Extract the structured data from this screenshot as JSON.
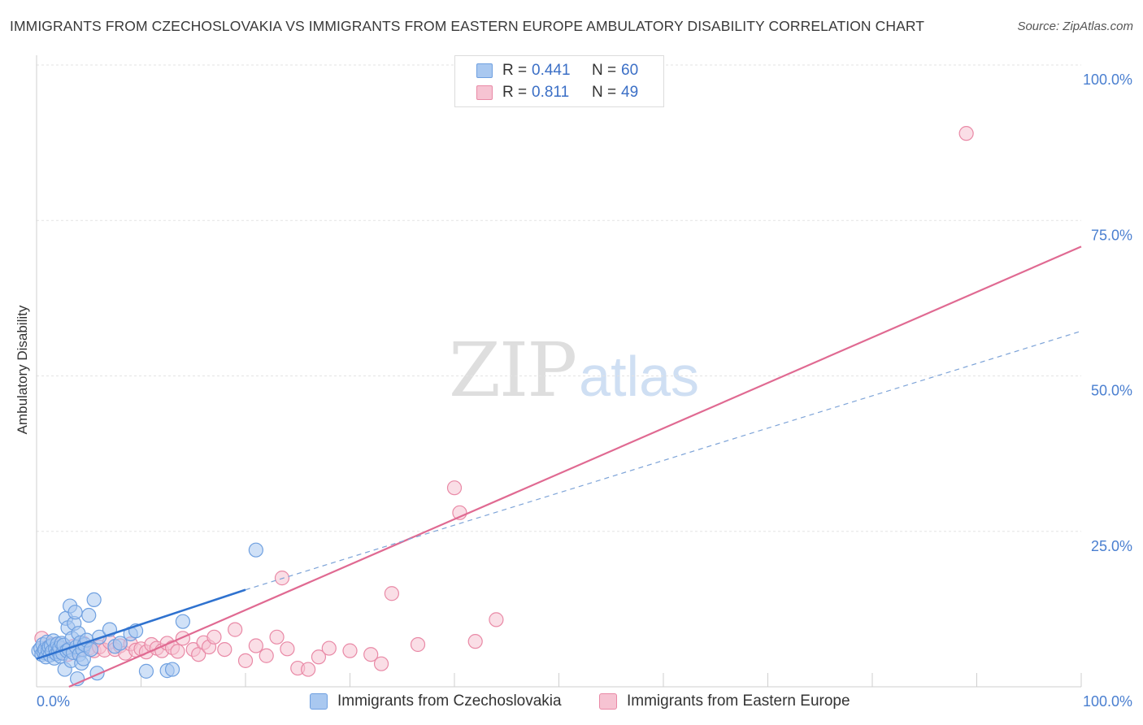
{
  "title": "IMMIGRANTS FROM CZECHOSLOVAKIA VS IMMIGRANTS FROM EASTERN EUROPE AMBULATORY DISABILITY CORRELATION CHART",
  "source": "Source: ZipAtlas.com",
  "watermark": {
    "zip": "ZIP",
    "atlas": "atlas"
  },
  "legend": {
    "rows": [
      {
        "r_label": "R =",
        "r_value": "0.441",
        "n_label": "N =",
        "n_value": "60"
      },
      {
        "r_label": "R =",
        "r_value": "0.811",
        "n_label": "N =",
        "n_value": "49"
      }
    ]
  },
  "chart_data": {
    "type": "scatter",
    "title": "IMMIGRANTS FROM CZECHOSLOVAKIA VS IMMIGRANTS FROM EASTERN EUROPE AMBULATORY DISABILITY CORRELATION CHART",
    "xlabel": "",
    "ylabel": "Ambulatory Disability",
    "xlim": [
      0,
      100
    ],
    "ylim": [
      0,
      100
    ],
    "x_tick_labels": [
      "0.0%",
      "100.0%"
    ],
    "y_tick_labels": [
      "25.0%",
      "50.0%",
      "75.0%",
      "100.0%"
    ],
    "y_ticks": [
      25,
      50,
      75,
      100
    ],
    "grid": true,
    "series": [
      {
        "name": "Immigrants from Czechoslovakia",
        "color": "#6fa0e0",
        "fill": "#a9c8f0",
        "R": 0.441,
        "N": 60,
        "trend": {
          "x0": 0,
          "y0": 4.5,
          "x1": 20,
          "y1": 15.6,
          "dashed_to": 100,
          "dashed_y": 57.2
        },
        "points": [
          [
            0.2,
            5.8
          ],
          [
            0.4,
            6.2
          ],
          [
            0.5,
            5.2
          ],
          [
            0.6,
            6.8
          ],
          [
            0.7,
            5.5
          ],
          [
            0.8,
            6.0
          ],
          [
            0.9,
            4.8
          ],
          [
            1.0,
            7.2
          ],
          [
            1.1,
            5.9
          ],
          [
            1.2,
            6.4
          ],
          [
            1.3,
            5.1
          ],
          [
            1.4,
            6.6
          ],
          [
            1.5,
            5.7
          ],
          [
            1.6,
            7.4
          ],
          [
            1.7,
            4.6
          ],
          [
            1.8,
            6.1
          ],
          [
            1.9,
            5.3
          ],
          [
            2.0,
            6.9
          ],
          [
            2.1,
            5.6
          ],
          [
            2.2,
            6.3
          ],
          [
            2.3,
            4.9
          ],
          [
            2.4,
            7.0
          ],
          [
            2.5,
            5.4
          ],
          [
            2.6,
            6.7
          ],
          [
            2.7,
            2.8
          ],
          [
            2.8,
            11.0
          ],
          [
            2.9,
            5.8
          ],
          [
            3.0,
            9.5
          ],
          [
            3.1,
            6.0
          ],
          [
            3.2,
            13.0
          ],
          [
            3.3,
            4.2
          ],
          [
            3.4,
            7.8
          ],
          [
            3.5,
            5.5
          ],
          [
            3.6,
            10.2
          ],
          [
            3.7,
            12.0
          ],
          [
            3.8,
            6.4
          ],
          [
            3.9,
            1.3
          ],
          [
            4.0,
            8.6
          ],
          [
            4.1,
            5.2
          ],
          [
            4.2,
            7.1
          ],
          [
            4.3,
            3.8
          ],
          [
            4.4,
            6.0
          ],
          [
            4.5,
            4.5
          ],
          [
            4.6,
            6.8
          ],
          [
            4.8,
            7.5
          ],
          [
            5.0,
            11.5
          ],
          [
            5.2,
            6.0
          ],
          [
            5.5,
            14.0
          ],
          [
            5.8,
            2.2
          ],
          [
            6.0,
            8.0
          ],
          [
            7.0,
            9.2
          ],
          [
            7.5,
            6.5
          ],
          [
            8.0,
            7.0
          ],
          [
            9.0,
            8.5
          ],
          [
            9.5,
            9.0
          ],
          [
            10.5,
            2.5
          ],
          [
            12.5,
            2.6
          ],
          [
            13.0,
            2.8
          ],
          [
            14.0,
            10.5
          ],
          [
            21.0,
            22.0
          ]
        ]
      },
      {
        "name": "Immigrants from Eastern Europe",
        "color": "#e989a6",
        "fill": "#f6c3d2",
        "R": 0.811,
        "N": 49,
        "trend": {
          "x0": 3.1,
          "y0": 0,
          "x1": 100,
          "y1": 70.8
        },
        "points": [
          [
            0.5,
            7.8
          ],
          [
            1.0,
            6.3
          ],
          [
            1.5,
            6.8
          ],
          [
            2.0,
            5.6
          ],
          [
            2.5,
            6.1
          ],
          [
            3.0,
            5.2
          ],
          [
            3.5,
            6.5
          ],
          [
            4.0,
            5.8
          ],
          [
            4.5,
            7.0
          ],
          [
            5.0,
            6.2
          ],
          [
            5.5,
            5.8
          ],
          [
            6.0,
            6.4
          ],
          [
            6.5,
            5.9
          ],
          [
            7.0,
            7.2
          ],
          [
            7.5,
            6.0
          ],
          [
            8.0,
            6.6
          ],
          [
            8.5,
            5.4
          ],
          [
            9.0,
            6.9
          ],
          [
            9.5,
            5.9
          ],
          [
            10.0,
            6.1
          ],
          [
            10.5,
            5.6
          ],
          [
            11.0,
            6.8
          ],
          [
            11.5,
            6.2
          ],
          [
            12.0,
            5.8
          ],
          [
            12.5,
            7.0
          ],
          [
            13.0,
            6.3
          ],
          [
            13.5,
            5.7
          ],
          [
            14.0,
            7.8
          ],
          [
            15.0,
            6.0
          ],
          [
            15.5,
            5.2
          ],
          [
            16.0,
            7.1
          ],
          [
            16.5,
            6.4
          ],
          [
            17.0,
            8.0
          ],
          [
            18.0,
            6.0
          ],
          [
            19.0,
            9.2
          ],
          [
            20.0,
            4.2
          ],
          [
            21.0,
            6.6
          ],
          [
            22.0,
            5.0
          ],
          [
            23.0,
            8.0
          ],
          [
            23.5,
            17.5
          ],
          [
            24.0,
            6.1
          ],
          [
            25.0,
            3.0
          ],
          [
            26.0,
            2.8
          ],
          [
            27.0,
            4.8
          ],
          [
            28.0,
            6.2
          ],
          [
            30.0,
            5.8
          ],
          [
            32.0,
            5.2
          ],
          [
            33.0,
            3.7
          ],
          [
            34.0,
            15.0
          ]
        ]
      }
    ],
    "extra_points_series_2": [
      [
        36.5,
        6.8
      ],
      [
        40.0,
        32.0
      ],
      [
        40.5,
        28.0
      ],
      [
        42.0,
        7.3
      ],
      [
        44.0,
        10.8
      ],
      [
        89.0,
        89.0
      ]
    ]
  },
  "bottom_legend": [
    {
      "label": "Immigrants from Czechoslovakia"
    },
    {
      "label": "Immigrants from Eastern Europe"
    }
  ]
}
